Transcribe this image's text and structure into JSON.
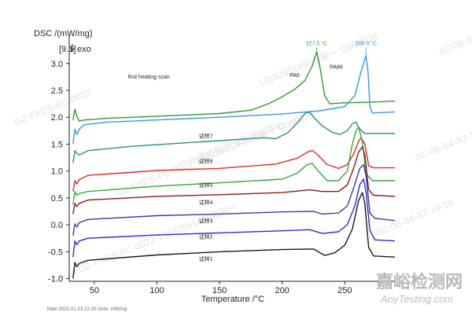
{
  "watermarks": {
    "brand_cn": "嘉峪检测网",
    "brand_url": "AnyTesting.com",
    "diagonal_texts": [
      "13592651495张辰一 G000038",
      "6C-0B-84-A7-19-14",
      "GZ-FXCS-PC-0022",
      "6C-0B-84-A7-19-14",
      "19-14 GZ-FXCS-PC-0022-13592651495张辰一",
      "广州嘉峪检测分析测试中心",
      "GZ-FXCS-PC-0022-13592651495张辰一 G000038",
      "6C-0B-84-A7-19-14"
    ]
  },
  "footer_note": "Main  2021-01-13 12:20   Units: mW/mg",
  "chart_data": {
    "type": "line",
    "title": "",
    "ylabel": "DSC /(mW/mg)",
    "ylabel_sub": "[9.1]",
    "exo_label": "exo",
    "xlabel": "Temperature /°C",
    "xlim": [
      30,
      290
    ],
    "ylim": [
      -1.05,
      3.45
    ],
    "xticks": [
      50,
      100,
      150,
      200,
      250
    ],
    "yticks": [
      -1.0,
      -0.5,
      0.0,
      0.5,
      1.0,
      1.5,
      2.0,
      2.5,
      3.0
    ],
    "grid": false,
    "annotations": {
      "scan_label": "first heating scan",
      "pa6_label": "PA6",
      "pa66_label": "PA66",
      "pa6_peak": "227.5 °C",
      "pa66_peak": "266.9 °C"
    },
    "series": [
      {
        "name": "PA6",
        "color": "#2e9a2e",
        "label": "",
        "points": [
          [
            33,
            1.95
          ],
          [
            34.5,
            2.15
          ],
          [
            36,
            2.02
          ],
          [
            38,
            1.93
          ],
          [
            42,
            1.95
          ],
          [
            60,
            1.98
          ],
          [
            100,
            2.02
          ],
          [
            150,
            2.07
          ],
          [
            175,
            2.13
          ],
          [
            190,
            2.26
          ],
          [
            200,
            2.38
          ],
          [
            210,
            2.52
          ],
          [
            218,
            2.68
          ],
          [
            224,
            2.95
          ],
          [
            227.5,
            3.22
          ],
          [
            230,
            2.95
          ],
          [
            234,
            2.4
          ],
          [
            238,
            2.25
          ],
          [
            250,
            2.27
          ],
          [
            270,
            2.28
          ],
          [
            290,
            2.3
          ]
        ]
      },
      {
        "name": "PA66",
        "color": "#3c96e6",
        "label": "",
        "points": [
          [
            33,
            1.5
          ],
          [
            34.5,
            1.78
          ],
          [
            36,
            1.68
          ],
          [
            38,
            1.78
          ],
          [
            42,
            1.86
          ],
          [
            60,
            1.91
          ],
          [
            100,
            1.95
          ],
          [
            150,
            2.0
          ],
          [
            200,
            2.06
          ],
          [
            230,
            2.12
          ],
          [
            250,
            2.2
          ],
          [
            258,
            2.4
          ],
          [
            263,
            2.85
          ],
          [
            266.9,
            3.15
          ],
          [
            268.5,
            2.85
          ],
          [
            270,
            2.2
          ],
          [
            272,
            2.08
          ],
          [
            290,
            2.1
          ]
        ]
      },
      {
        "name": "",
        "color": "#2f8a8e",
        "label": "试样7",
        "points": [
          [
            33,
            1.15
          ],
          [
            34.5,
            1.38
          ],
          [
            36,
            1.33
          ],
          [
            38,
            1.3
          ],
          [
            45,
            1.38
          ],
          [
            80,
            1.46
          ],
          [
            120,
            1.52
          ],
          [
            160,
            1.58
          ],
          [
            185,
            1.62
          ],
          [
            195,
            1.6
          ],
          [
            205,
            1.72
          ],
          [
            213,
            1.92
          ],
          [
            219,
            2.09
          ],
          [
            222,
            2.09
          ],
          [
            226,
            1.98
          ],
          [
            232,
            1.84
          ],
          [
            240,
            1.72
          ],
          [
            246,
            1.68
          ],
          [
            252,
            1.75
          ],
          [
            256,
            1.88
          ],
          [
            259,
            1.91
          ],
          [
            262,
            1.78
          ],
          [
            266,
            1.7
          ],
          [
            290,
            1.7
          ]
        ]
      },
      {
        "name": "",
        "color": "#e02a2a",
        "label": "试样6",
        "points": [
          [
            33,
            0.62
          ],
          [
            34.5,
            0.82
          ],
          [
            36,
            0.76
          ],
          [
            38,
            0.84
          ],
          [
            45,
            0.92
          ],
          [
            100,
            1.01
          ],
          [
            150,
            1.05
          ],
          [
            195,
            1.13
          ],
          [
            212,
            1.24
          ],
          [
            220,
            1.35
          ],
          [
            224,
            1.38
          ],
          [
            228,
            1.31
          ],
          [
            236,
            1.12
          ],
          [
            245,
            1.05
          ],
          [
            252,
            1.12
          ],
          [
            257,
            1.32
          ],
          [
            261,
            1.55
          ],
          [
            263,
            1.62
          ],
          [
            266,
            1.5
          ],
          [
            269,
            1.1
          ],
          [
            273,
            1.06
          ],
          [
            290,
            1.06
          ]
        ]
      },
      {
        "name": "",
        "color": "#3aa63a",
        "label": "试样5",
        "points": [
          [
            33,
            0.38
          ],
          [
            34.5,
            0.62
          ],
          [
            36,
            0.55
          ],
          [
            38,
            0.58
          ],
          [
            45,
            0.62
          ],
          [
            100,
            0.72
          ],
          [
            150,
            0.78
          ],
          [
            200,
            0.85
          ],
          [
            212,
            0.96
          ],
          [
            220,
            1.12
          ],
          [
            224,
            1.14
          ],
          [
            228,
            1.02
          ],
          [
            236,
            0.82
          ],
          [
            245,
            0.82
          ],
          [
            252,
            1.0
          ],
          [
            256,
            1.5
          ],
          [
            259,
            1.75
          ],
          [
            261,
            1.82
          ],
          [
            264,
            1.55
          ],
          [
            267,
            0.95
          ],
          [
            272,
            0.82
          ],
          [
            290,
            0.82
          ]
        ]
      },
      {
        "name": "",
        "color": "#8b1a1a",
        "label": "试样4",
        "points": [
          [
            33,
            0.2
          ],
          [
            34.5,
            0.4
          ],
          [
            36,
            0.34
          ],
          [
            38,
            0.4
          ],
          [
            45,
            0.46
          ],
          [
            100,
            0.53
          ],
          [
            150,
            0.56
          ],
          [
            200,
            0.6
          ],
          [
            222,
            0.65
          ],
          [
            232,
            0.62
          ],
          [
            245,
            0.62
          ],
          [
            252,
            0.74
          ],
          [
            257,
            1.05
          ],
          [
            261,
            1.35
          ],
          [
            264,
            1.45
          ],
          [
            266,
            1.3
          ],
          [
            269,
            0.65
          ],
          [
            273,
            0.55
          ],
          [
            290,
            0.53
          ]
        ]
      },
      {
        "name": "",
        "color": "#3a3aaa",
        "label": "试样3",
        "points": [
          [
            33,
            -0.2
          ],
          [
            34.5,
            0.02
          ],
          [
            36,
            -0.04
          ],
          [
            38,
            0.04
          ],
          [
            45,
            0.1
          ],
          [
            100,
            0.17
          ],
          [
            150,
            0.2
          ],
          [
            200,
            0.24
          ],
          [
            225,
            0.25
          ],
          [
            232,
            0.2
          ],
          [
            245,
            0.22
          ],
          [
            252,
            0.35
          ],
          [
            258,
            0.75
          ],
          [
            262,
            1.05
          ],
          [
            265,
            1.12
          ],
          [
            267,
            0.9
          ],
          [
            270,
            0.22
          ],
          [
            274,
            0.12
          ],
          [
            290,
            0.08
          ]
        ]
      },
      {
        "name": "",
        "color": "#2a2ad6",
        "label": "试样2",
        "points": [
          [
            33,
            -0.6
          ],
          [
            34.5,
            -0.3
          ],
          [
            36,
            -0.37
          ],
          [
            38,
            -0.3
          ],
          [
            45,
            -0.25
          ],
          [
            100,
            -0.19
          ],
          [
            150,
            -0.15
          ],
          [
            200,
            -0.11
          ],
          [
            222,
            -0.09
          ],
          [
            232,
            -0.16
          ],
          [
            245,
            -0.13
          ],
          [
            252,
            0.0
          ],
          [
            258,
            0.35
          ],
          [
            262,
            0.75
          ],
          [
            265,
            0.85
          ],
          [
            267,
            0.6
          ],
          [
            270,
            -0.1
          ],
          [
            274,
            -0.28
          ],
          [
            290,
            -0.3
          ]
        ]
      },
      {
        "name": "",
        "color": "#1a1a1a",
        "label": "试样1",
        "points": [
          [
            33,
            -1.0
          ],
          [
            34.5,
            -0.7
          ],
          [
            36,
            -0.78
          ],
          [
            38,
            -0.72
          ],
          [
            45,
            -0.66
          ],
          [
            100,
            -0.56
          ],
          [
            150,
            -0.5
          ],
          [
            200,
            -0.46
          ],
          [
            225,
            -0.45
          ],
          [
            234,
            -0.57
          ],
          [
            242,
            -0.52
          ],
          [
            250,
            -0.38
          ],
          [
            256,
            -0.08
          ],
          [
            261,
            0.45
          ],
          [
            264,
            0.6
          ],
          [
            266,
            0.4
          ],
          [
            269,
            -0.42
          ],
          [
            273,
            -0.58
          ],
          [
            290,
            -0.6
          ]
        ]
      }
    ],
    "sample_label_positions_data": [
      {
        "label": "试样7",
        "x": 139,
        "y": 1.62
      },
      {
        "label": "试样6",
        "x": 139,
        "y": 1.15
      },
      {
        "label": "试样5",
        "x": 139,
        "y": 0.7
      },
      {
        "label": "试样4",
        "x": 139,
        "y": 0.38
      },
      {
        "label": "试样3",
        "x": 139,
        "y": 0.04
      },
      {
        "label": "试样2",
        "x": 139,
        "y": -0.26
      },
      {
        "label": "试样1",
        "x": 139,
        "y": -0.67
      }
    ],
    "peak_marker_positions_data": [
      {
        "for": "pa6",
        "x": 227.5,
        "y": 3.22,
        "label_x": 227.5,
        "label_y": 3.34
      },
      {
        "for": "pa66",
        "x": 266.9,
        "y": 3.15,
        "label_x": 267,
        "label_y": 3.34
      }
    ],
    "text_annotation_positions_data": [
      {
        "key": "scan_label",
        "x": 77,
        "y": 2.72
      },
      {
        "key": "pa6_label",
        "x": 206,
        "y": 2.75
      },
      {
        "key": "pa66_label",
        "x": 238,
        "y": 2.9
      }
    ]
  }
}
